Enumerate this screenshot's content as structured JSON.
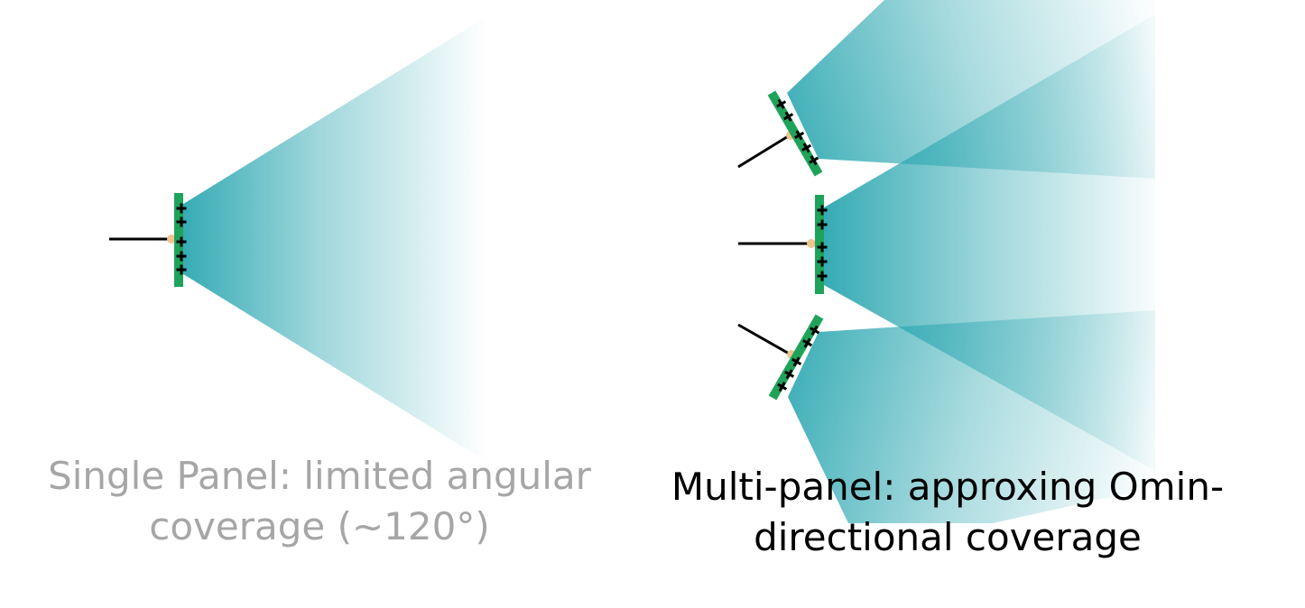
{
  "captions": {
    "single_line1": "Single Panel: limited angular",
    "single_line2": "coverage (~120°)",
    "multi_line1": "Multi-panel: approxing Omin-",
    "multi_line2": "directional coverage"
  },
  "colors": {
    "beam": "#2aa6b0",
    "panel": "#1fa35a",
    "antenna_element": "#000000",
    "feed_point": "#f2c48f",
    "cable": "#000000",
    "caption_single": "#a6a6a6",
    "caption_multi": "#000000"
  },
  "single_panel": {
    "coverage_angle_deg": 120
  }
}
